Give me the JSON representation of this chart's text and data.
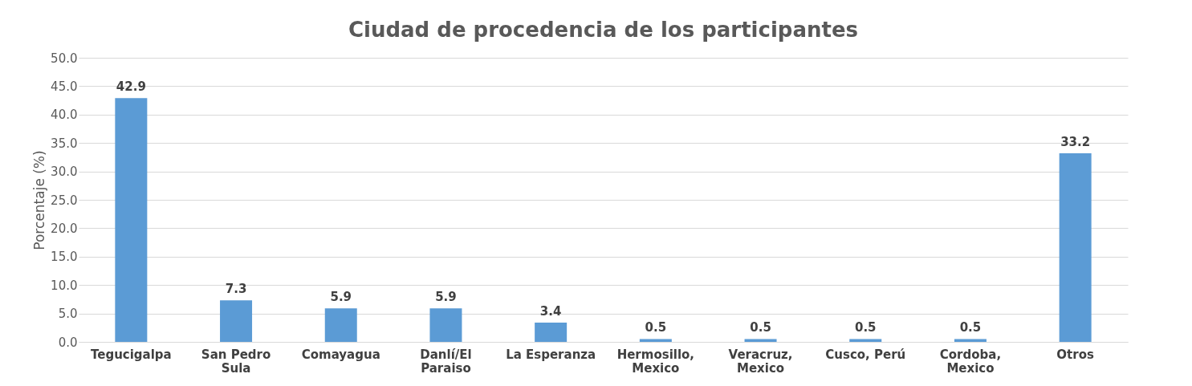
{
  "chart_data": {
    "type": "bar",
    "title": "Ciudad de procedencia de los participantes",
    "ylabel": "Porcentaje (%)",
    "categories": [
      "Tegucigalpa",
      "San Pedro Sula",
      "Comayagua",
      "Danlí/El Paraiso",
      "La Esperanza",
      "Hermosillo, Mexico",
      "Veracruz, Mexico",
      "Cusco, Perú",
      "Cordoba, Mexico",
      "Otros"
    ],
    "values": [
      42.9,
      7.3,
      5.9,
      5.9,
      3.4,
      0.5,
      0.5,
      0.5,
      0.5,
      33.2
    ],
    "color": "#5b9bd5",
    "ylim": [
      0,
      50
    ],
    "yticks": [
      {
        "value": 0,
        "label": "0.0"
      },
      {
        "value": 5,
        "label": "5.0"
      },
      {
        "value": 10,
        "label": "10.0"
      },
      {
        "value": 15,
        "label": "15.0"
      },
      {
        "value": 20,
        "label": "20.0"
      },
      {
        "value": 25,
        "label": "25.0"
      },
      {
        "value": 30,
        "label": "30.0"
      },
      {
        "value": 35,
        "label": "35.0"
      },
      {
        "value": 40,
        "label": "40.0"
      },
      {
        "value": 45,
        "label": "45.0"
      },
      {
        "value": 50,
        "label": "50.0"
      }
    ],
    "grid": "y",
    "data_labels": true
  }
}
